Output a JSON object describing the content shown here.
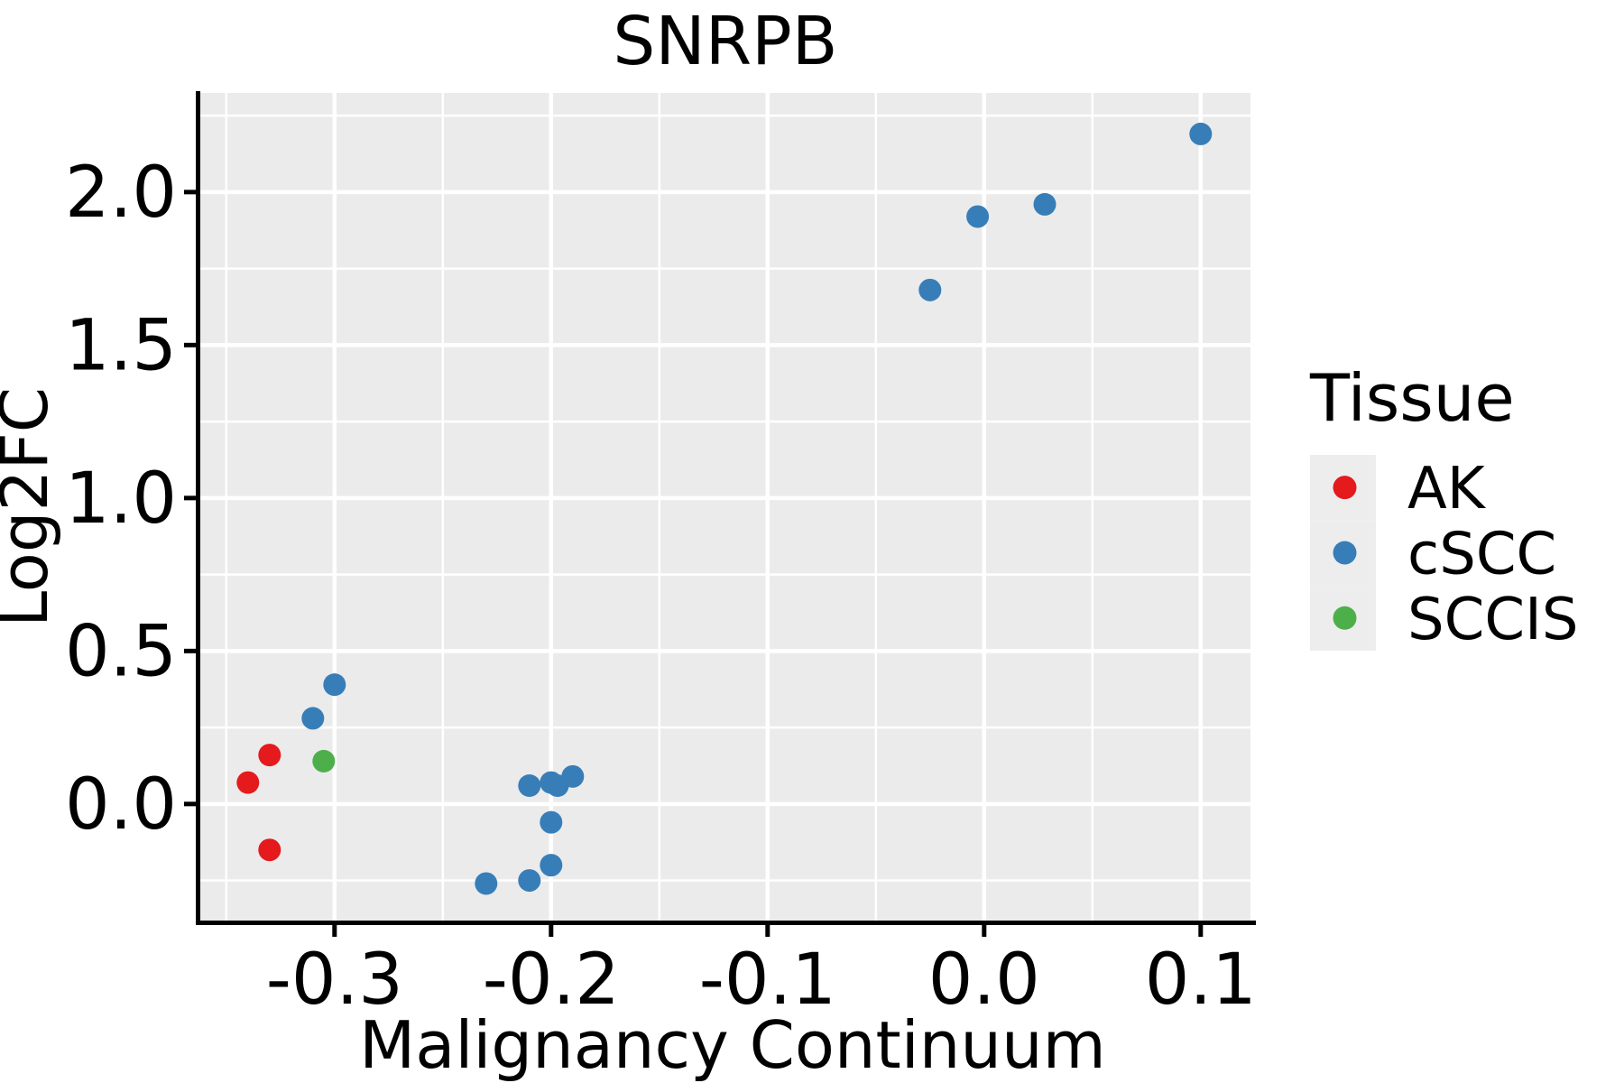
{
  "title": "SNRPB",
  "axes": {
    "x": {
      "label": "Malignancy Continuum",
      "ticks": [
        -0.3,
        -0.2,
        -0.1,
        0.0,
        0.1
      ],
      "tick_labels": [
        "-0.3",
        "-0.2",
        "-0.1",
        "0.0",
        "0.1"
      ],
      "minor_ticks": [
        -0.35,
        -0.25,
        -0.15,
        -0.05,
        0.05
      ]
    },
    "y": {
      "label": "Log2FC",
      "ticks": [
        0.0,
        0.5,
        1.0,
        1.5,
        2.0
      ],
      "tick_labels": [
        "0.0",
        "0.5",
        "1.0",
        "1.5",
        "2.0"
      ],
      "minor_ticks": [
        -0.25,
        0.25,
        0.75,
        1.25,
        1.75,
        2.25
      ]
    }
  },
  "legend": {
    "title": "Tissue",
    "entries": [
      {
        "label": "AK",
        "color": "#E41A1C"
      },
      {
        "label": "cSCC",
        "color": "#377EB8"
      },
      {
        "label": "SCCIS",
        "color": "#4DAF4A"
      }
    ]
  },
  "chart_data": {
    "type": "scatter",
    "title": "SNRPB",
    "xlabel": "Malignancy Continuum",
    "ylabel": "Log2FC",
    "xlim": [
      -0.362,
      0.123
    ],
    "ylim": [
      -0.381,
      2.324
    ],
    "grid": true,
    "legend_position": "right",
    "series": [
      {
        "name": "AK",
        "color": "#E41A1C",
        "points": [
          [
            -0.33,
            0.16
          ],
          [
            -0.34,
            0.07
          ],
          [
            -0.33,
            -0.15
          ]
        ]
      },
      {
        "name": "cSCC",
        "color": "#377EB8",
        "points": [
          [
            -0.3,
            0.39
          ],
          [
            -0.31,
            0.28
          ],
          [
            -0.21,
            0.06
          ],
          [
            -0.2,
            0.07
          ],
          [
            -0.197,
            0.06
          ],
          [
            -0.19,
            0.09
          ],
          [
            -0.2,
            -0.06
          ],
          [
            -0.2,
            -0.2
          ],
          [
            -0.21,
            -0.25
          ],
          [
            -0.23,
            -0.26
          ],
          [
            -0.025,
            1.68
          ],
          [
            -0.003,
            1.92
          ],
          [
            0.028,
            1.96
          ],
          [
            0.1,
            2.19
          ]
        ]
      },
      {
        "name": "SCCIS",
        "color": "#4DAF4A",
        "points": [
          [
            -0.305,
            0.14
          ]
        ]
      }
    ]
  },
  "colors": {
    "panel_bg": "#EBEBEB",
    "grid": "#FFFFFF",
    "axis": "#000000",
    "text": "#000000",
    "legend_key_bg": "#EDEDED"
  }
}
